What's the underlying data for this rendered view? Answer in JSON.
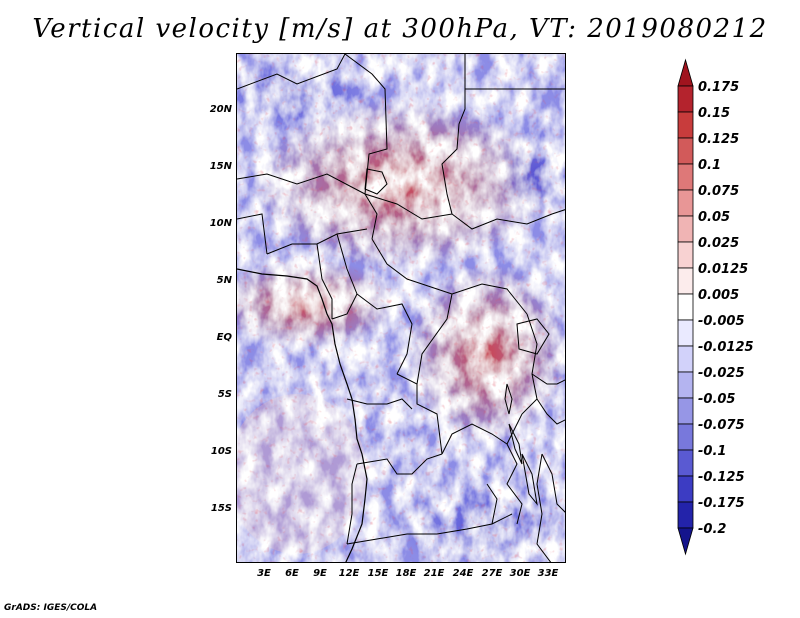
{
  "title": "Vertical velocity [m/s] at 300hPa, VT: 2019080212",
  "credit": "GrADS: IGES/COLA",
  "map": {
    "type": "meteorological-field",
    "variable": "Vertical velocity",
    "units": "m/s",
    "level": "300hPa",
    "valid_time": "2019080212",
    "lat_range": [
      -19.5,
      24.5
    ],
    "lon_range": [
      0,
      34.5
    ],
    "lat_ticks": [
      {
        "lat": 20,
        "label": "20N"
      },
      {
        "lat": 15,
        "label": "15N"
      },
      {
        "lat": 10,
        "label": "10N"
      },
      {
        "lat": 5,
        "label": "5N"
      },
      {
        "lat": 0,
        "label": "EQ"
      },
      {
        "lat": -5,
        "label": "5S"
      },
      {
        "lat": -10,
        "label": "10S"
      },
      {
        "lat": -15,
        "label": "15S"
      }
    ],
    "lon_ticks": [
      {
        "lon": 3,
        "label": "3E"
      },
      {
        "lon": 6,
        "label": "6E"
      },
      {
        "lon": 9,
        "label": "9E"
      },
      {
        "lon": 12,
        "label": "12E"
      },
      {
        "lon": 15,
        "label": "15E"
      },
      {
        "lon": 18,
        "label": "18E"
      },
      {
        "lon": 21,
        "label": "21E"
      },
      {
        "lon": 24,
        "label": "24E"
      },
      {
        "lon": 27,
        "label": "27E"
      },
      {
        "lon": 30,
        "label": "30E"
      },
      {
        "lon": 33,
        "label": "33E"
      }
    ]
  },
  "colorbar": {
    "labels": [
      "0.175",
      "0.15",
      "0.125",
      "0.1",
      "0.075",
      "0.05",
      "0.025",
      "0.0125",
      "0.005",
      "-0.005",
      "-0.0125",
      "-0.025",
      "-0.05",
      "-0.075",
      "-0.1",
      "-0.125",
      "-0.175",
      "-0.2"
    ],
    "colors": [
      "#a0141e",
      "#b4232d",
      "#c83c3c",
      "#d25a5a",
      "#de7878",
      "#e89696",
      "#f0b4b4",
      "#f8d2d2",
      "#fcecec",
      "#ffffff",
      "#eaeaff",
      "#d2d2fa",
      "#b4b4f0",
      "#9696e6",
      "#7878dc",
      "#5a5ad2",
      "#3c3cc3",
      "#2323aa",
      "#14148c"
    ]
  }
}
